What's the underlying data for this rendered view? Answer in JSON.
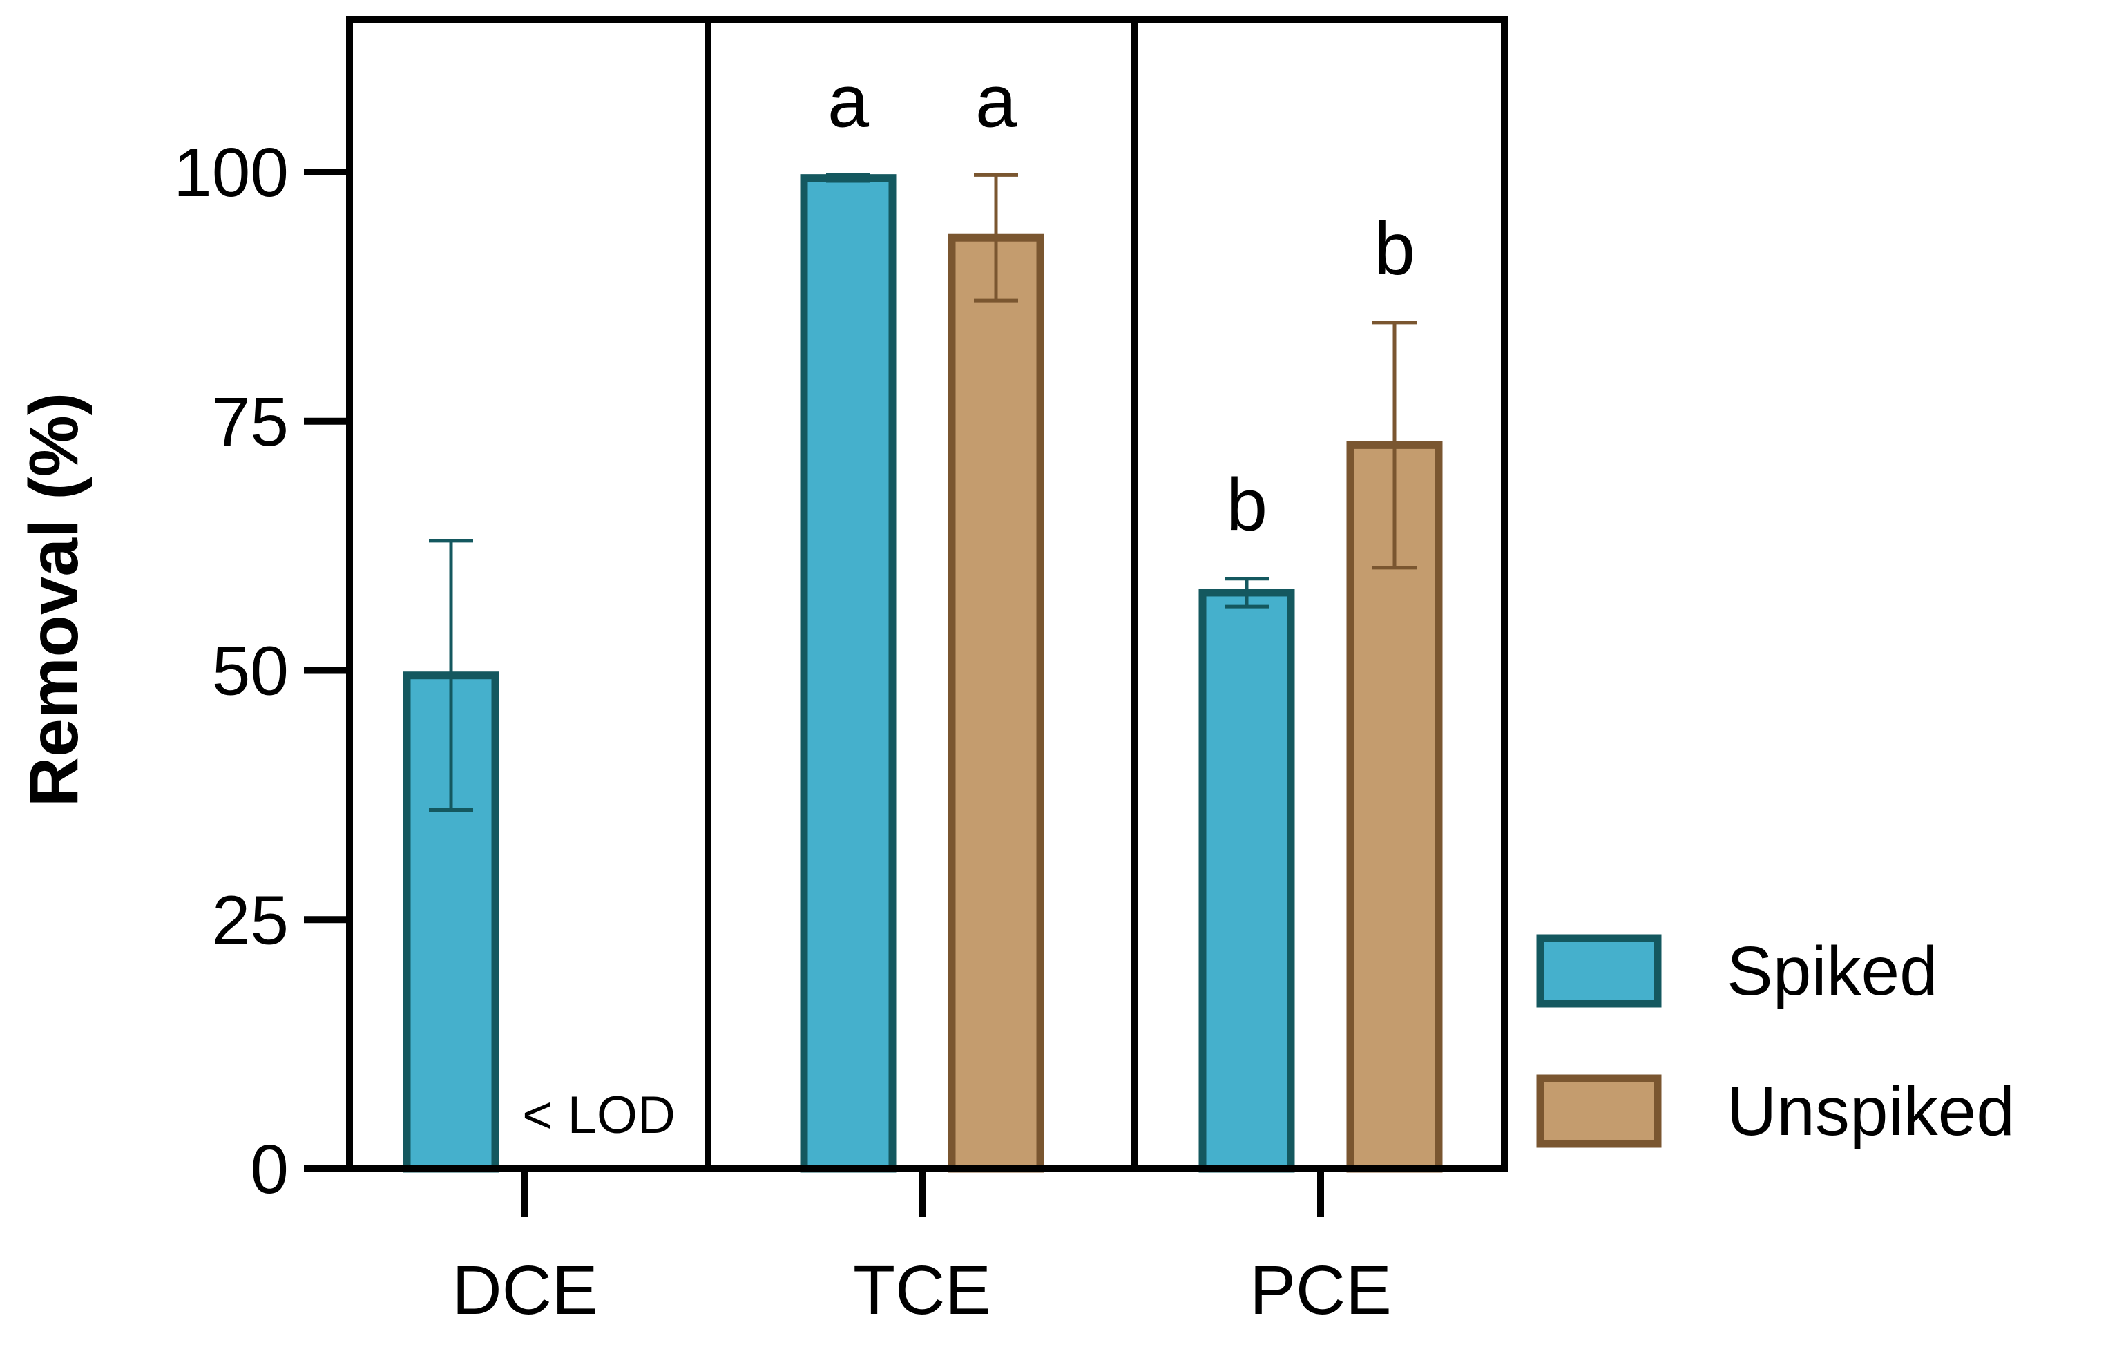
{
  "chart_data": {
    "type": "bar",
    "title": "",
    "xlabel": "",
    "ylabel": "Removal (%)",
    "ylim": [
      0,
      115
    ],
    "yticks": [
      0,
      25,
      50,
      75,
      100
    ],
    "ytick_labels": [
      "0",
      "25",
      "50",
      "75",
      "100"
    ],
    "categories": [
      "DCE",
      "TCE",
      "PCE"
    ],
    "series": [
      {
        "name": "Spiked",
        "fill": "#45b0cc",
        "stroke": "#14585f",
        "values": [
          49.5,
          99.4,
          57.8
        ],
        "errors": [
          13.5,
          0.3,
          1.4
        ],
        "sig_letters": [
          "",
          "a",
          "b"
        ]
      },
      {
        "name": "Unspiked",
        "fill": "#c49c6e",
        "stroke": "#7a5630",
        "values": [
          null,
          93.4,
          72.6
        ],
        "errors": [
          null,
          6.3,
          12.3
        ],
        "sig_letters": [
          "",
          "a",
          "b"
        ]
      }
    ],
    "annotations": [
      {
        "text": "< LOD",
        "category": "DCE",
        "series": "Unspiked"
      }
    ],
    "legend": {
      "position": "right",
      "entries": [
        "Spiked",
        "Unspiked"
      ]
    },
    "grid": false
  }
}
